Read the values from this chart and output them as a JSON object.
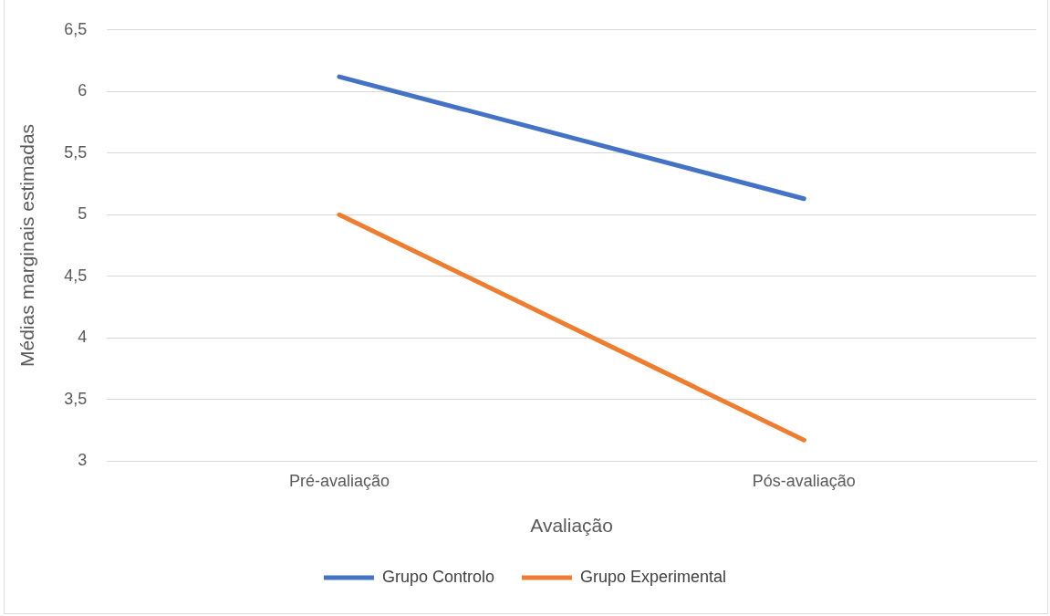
{
  "chart_data": {
    "type": "line",
    "xlabel": "Avaliação",
    "ylabel": "Médias marginais estimadas",
    "categories": [
      "Pré-avaliação",
      "Pós-avaliação"
    ],
    "series": [
      {
        "name": "Grupo Controlo",
        "color": "#4472c4",
        "values": [
          6.12,
          5.13
        ]
      },
      {
        "name": "Grupo Experimental",
        "color": "#ed7d31",
        "values": [
          5.0,
          3.17
        ]
      }
    ],
    "ylim": [
      3,
      6.5
    ],
    "yticks": [
      3,
      {
        "value": 3.5,
        "label": "3,5"
      },
      4,
      {
        "value": 4.5,
        "label": "4,5"
      },
      5,
      {
        "value": 5.5,
        "label": "5,5"
      },
      6,
      {
        "value": 6.5,
        "label": "6,5"
      }
    ],
    "grid": "y",
    "legend": "bottom",
    "marker": "none",
    "line_style": "solid"
  }
}
